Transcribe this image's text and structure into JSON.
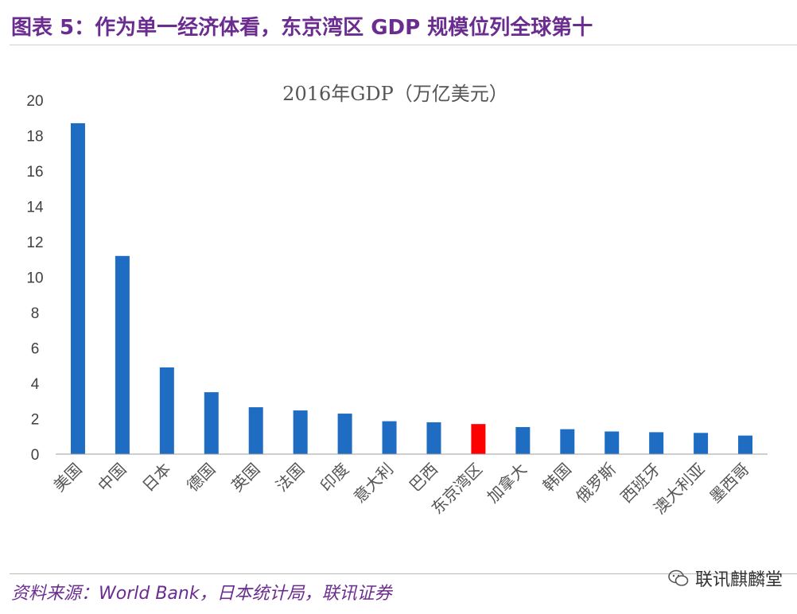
{
  "figure": {
    "title": "图表 5：作为单一经济体看，东京湾区 GDP 规模位列全球第十",
    "source": "资料来源：World Bank，日本统计局，联讯证券",
    "watermark": "联讯麒麟堂"
  },
  "chart_data": {
    "type": "bar",
    "title": "2016年GDP（万亿美元）",
    "categories": [
      "美国",
      "中国",
      "日本",
      "德国",
      "英国",
      "法国",
      "印度",
      "意大利",
      "巴西",
      "东京湾区",
      "加拿大",
      "韩国",
      "俄罗斯",
      "西班牙",
      "澳大利亚",
      "墨西哥"
    ],
    "values": [
      18.7,
      11.2,
      4.9,
      3.5,
      2.65,
      2.47,
      2.29,
      1.86,
      1.8,
      1.7,
      1.53,
      1.41,
      1.28,
      1.24,
      1.2,
      1.05
    ],
    "highlight": "东京湾区",
    "colors": {
      "bar": "#1f6dc2",
      "highlight": "#ff0000",
      "axis": "#9e9e9e",
      "tick_text": "#404040"
    },
    "ylim": [
      0,
      20
    ],
    "yticks": [
      0,
      2,
      4,
      6,
      8,
      10,
      12,
      14,
      16,
      18,
      20
    ],
    "grid": false,
    "xlabel": "",
    "ylabel": ""
  }
}
